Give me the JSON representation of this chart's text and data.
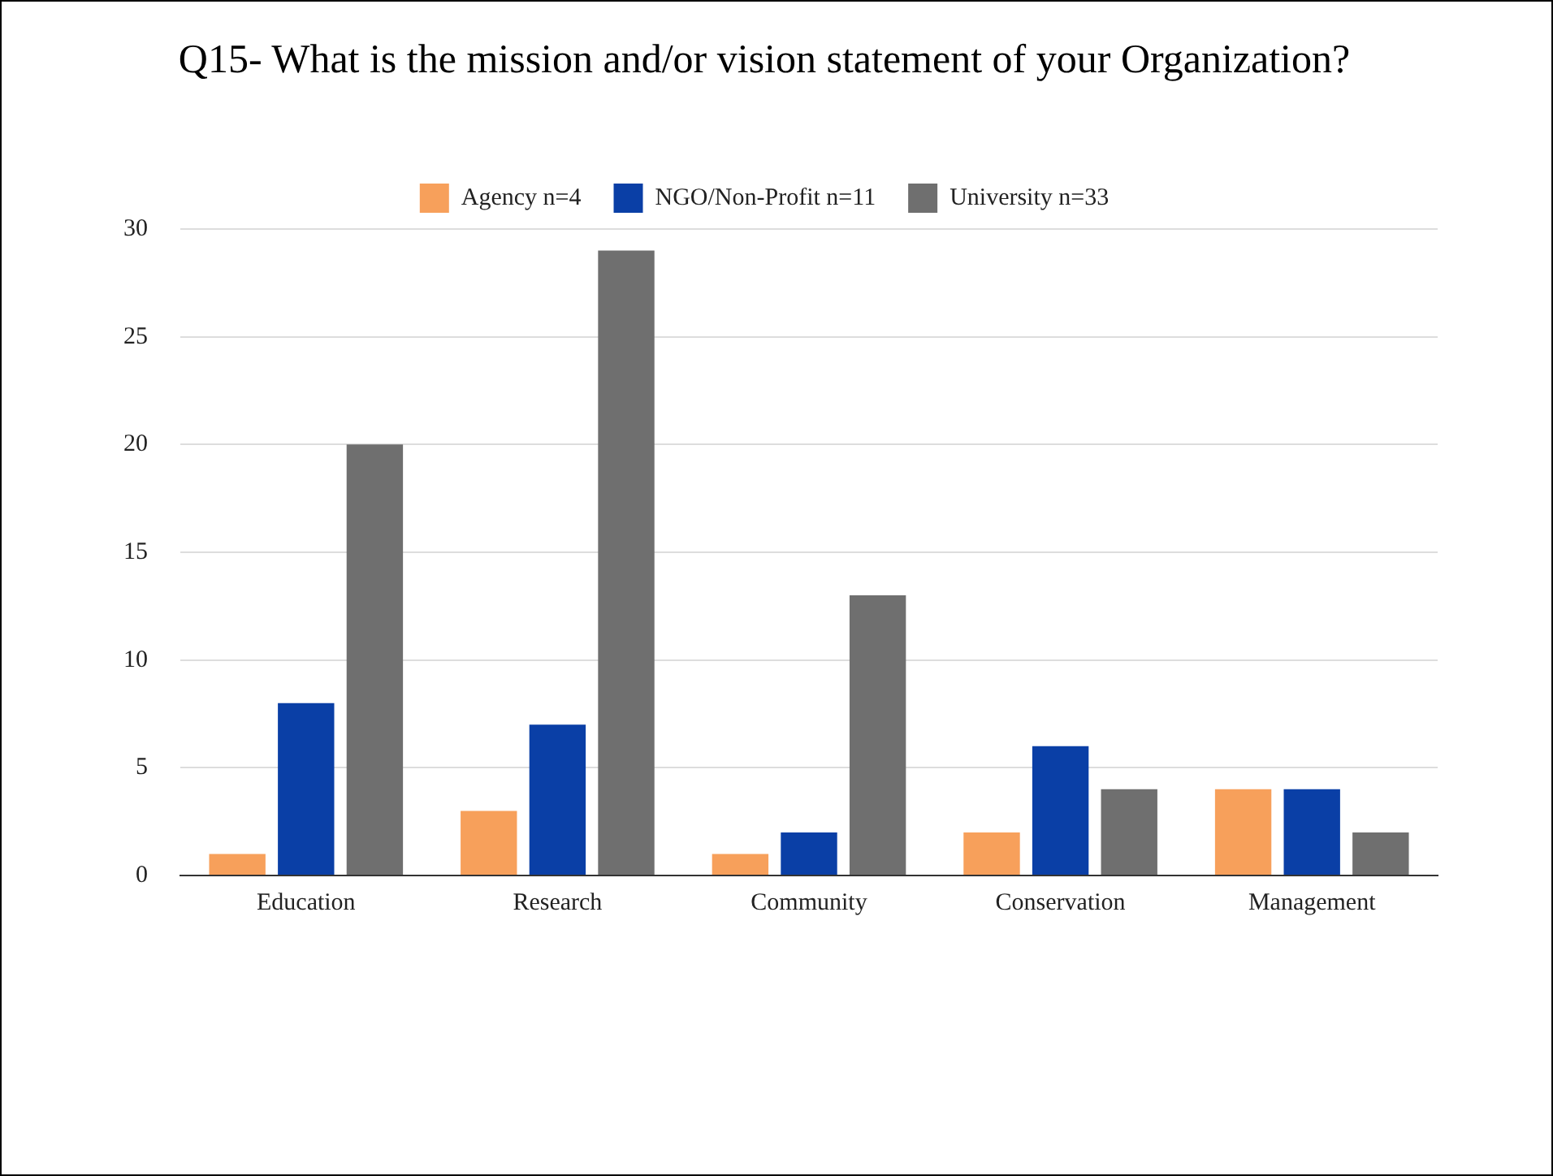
{
  "chart_data": {
    "type": "bar",
    "title": "Q15- What is the mission and/or vision statement of your Organization?",
    "categories": [
      "Education",
      "Research",
      "Community",
      "Conservation",
      "Management"
    ],
    "series": [
      {
        "name": "Agency n=4",
        "color": "#f7a05b",
        "values": [
          1,
          3,
          1,
          2,
          4
        ]
      },
      {
        "name": "NGO/Non-Profit n=11",
        "color": "#0a3fa6",
        "values": [
          8,
          7,
          2,
          6,
          4
        ]
      },
      {
        "name": "University n=33",
        "color": "#6f6f6f",
        "values": [
          20,
          29,
          13,
          4,
          2
        ]
      }
    ],
    "ylim": [
      0,
      30
    ],
    "yticks": [
      0,
      5,
      10,
      15,
      20,
      25,
      30
    ],
    "grid": "y",
    "legend": "top"
  }
}
